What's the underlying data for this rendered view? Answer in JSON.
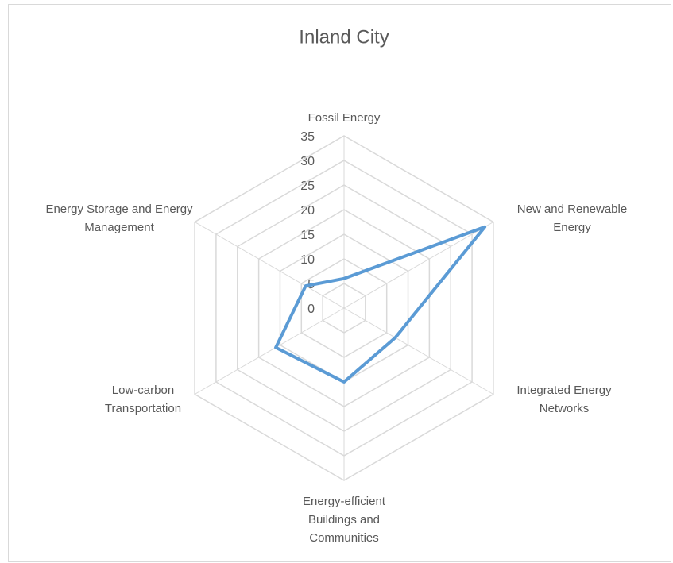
{
  "chart_data": {
    "type": "radar",
    "title": "Inland City",
    "categories": [
      "Fossil Energy",
      "New and Renewable Energy",
      "Integrated Energy Networks",
      "Energy-efficient Buildings and Communities",
      "Low-carbon Transportation",
      "Energy Storage and Energy Management"
    ],
    "series": [
      {
        "name": "Inland City",
        "color": "#5b9bd5",
        "values": [
          6,
          33,
          12,
          15,
          16,
          9
        ]
      }
    ],
    "ylim": [
      0,
      35
    ],
    "yticks": [
      0,
      5,
      10,
      15,
      20,
      25,
      30,
      35
    ],
    "grid": true
  }
}
